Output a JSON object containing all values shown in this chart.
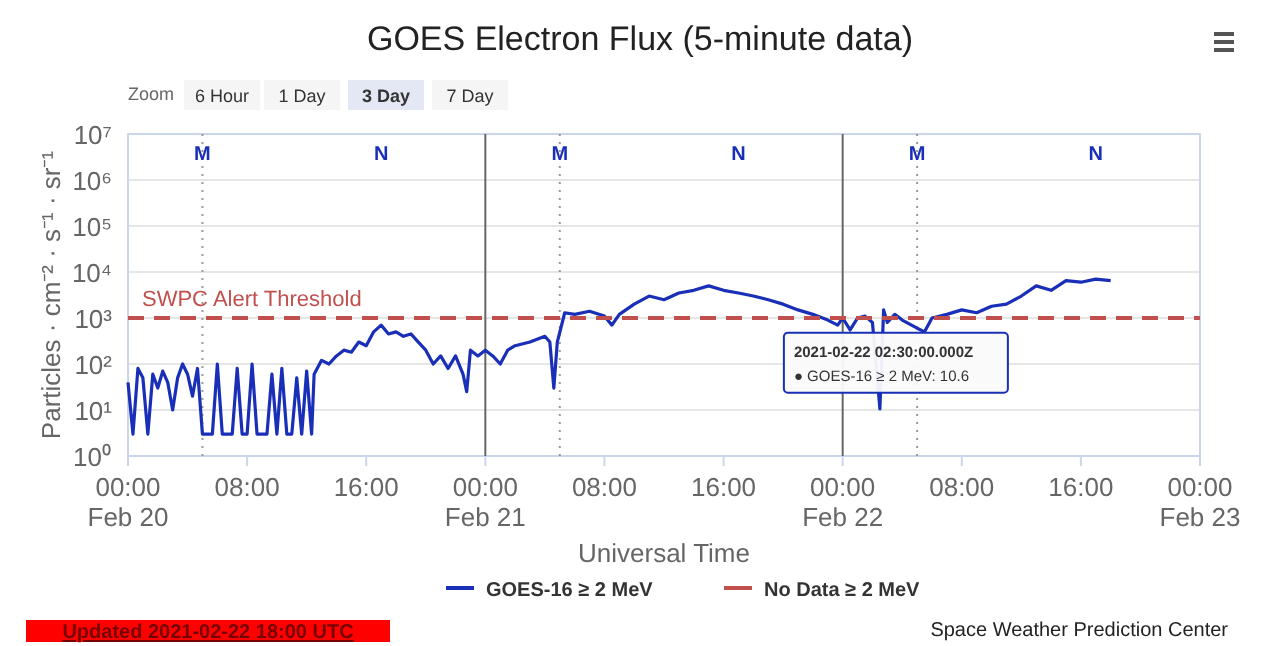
{
  "chart_data": {
    "type": "line",
    "title": "GOES Electron Flux (5-minute data)",
    "xlabel": "Universal Time",
    "ylabel": "Particles · cm⁻² · s⁻¹ · sr⁻¹",
    "log": "y",
    "grid": "y",
    "legend": "bottom",
    "line_style": "solid",
    "xlim": [
      "2021-02-20T00:00",
      "2021-02-23T00:00"
    ],
    "xticks": [
      {
        "value": "2021-02-20T00:00",
        "label": "00:00\nFeb 20"
      },
      {
        "value": "2021-02-20T08:00",
        "label": "08:00"
      },
      {
        "value": "2021-02-20T16:00",
        "label": "16:00"
      },
      {
        "value": "2021-02-21T00:00",
        "label": "00:00\nFeb 21"
      },
      {
        "value": "2021-02-21T08:00",
        "label": "08:00"
      },
      {
        "value": "2021-02-21T16:00",
        "label": "16:00"
      },
      {
        "value": "2021-02-22T00:00",
        "label": "00:00\nFeb 22"
      },
      {
        "value": "2021-02-22T08:00",
        "label": "08:00"
      },
      {
        "value": "2021-02-22T16:00",
        "label": "16:00"
      },
      {
        "value": "2021-02-23T00:00",
        "label": "00:00\nFeb 23"
      }
    ],
    "ylim": [
      1,
      10000000
    ],
    "yticks": [
      {
        "value": 1,
        "label": "10⁰"
      },
      {
        "value": 10,
        "label": "10¹"
      },
      {
        "value": 100,
        "label": "10²"
      },
      {
        "value": 1000,
        "label": "10³"
      },
      {
        "value": 10000,
        "label": "10⁴"
      },
      {
        "value": 100000,
        "label": "10⁵"
      },
      {
        "value": 1000000,
        "label": "10⁶"
      },
      {
        "value": 10000000,
        "label": "10⁷"
      }
    ],
    "series": [
      {
        "name": "GOES-16 ≥ 2 MeV",
        "color": "#1a2fb8",
        "x": [
          "2021-02-20T00:00",
          "2021-02-20T00:20",
          "2021-02-20T00:40",
          "2021-02-20T01:00",
          "2021-02-20T01:20",
          "2021-02-20T01:40",
          "2021-02-20T02:00",
          "2021-02-20T02:20",
          "2021-02-20T02:40",
          "2021-02-20T03:00",
          "2021-02-20T03:20",
          "2021-02-20T03:40",
          "2021-02-20T04:00",
          "2021-02-20T04:20",
          "2021-02-20T04:40",
          "2021-02-20T05:00",
          "2021-02-20T05:20",
          "2021-02-20T05:40",
          "2021-02-20T06:00",
          "2021-02-20T06:20",
          "2021-02-20T06:40",
          "2021-02-20T07:00",
          "2021-02-20T07:20",
          "2021-02-20T07:40",
          "2021-02-20T08:00",
          "2021-02-20T08:20",
          "2021-02-20T08:40",
          "2021-02-20T09:00",
          "2021-02-20T09:20",
          "2021-02-20T09:40",
          "2021-02-20T10:00",
          "2021-02-20T10:20",
          "2021-02-20T10:40",
          "2021-02-20T11:00",
          "2021-02-20T11:20",
          "2021-02-20T11:40",
          "2021-02-20T12:00",
          "2021-02-20T12:20",
          "2021-02-20T12:30",
          "2021-02-20T13:00",
          "2021-02-20T13:30",
          "2021-02-20T14:00",
          "2021-02-20T14:30",
          "2021-02-20T15:00",
          "2021-02-20T15:30",
          "2021-02-20T16:00",
          "2021-02-20T16:30",
          "2021-02-20T17:00",
          "2021-02-20T17:30",
          "2021-02-20T18:00",
          "2021-02-20T18:30",
          "2021-02-20T19:00",
          "2021-02-20T19:30",
          "2021-02-20T20:00",
          "2021-02-20T20:30",
          "2021-02-20T21:00",
          "2021-02-20T21:30",
          "2021-02-20T22:00",
          "2021-02-20T22:30",
          "2021-02-20T22:45",
          "2021-02-20T23:00",
          "2021-02-20T23:30",
          "2021-02-21T00:00",
          "2021-02-21T00:30",
          "2021-02-21T01:00",
          "2021-02-21T01:30",
          "2021-02-21T02:00",
          "2021-02-21T03:00",
          "2021-02-21T04:00",
          "2021-02-21T04:20",
          "2021-02-21T04:36",
          "2021-02-21T04:50",
          "2021-02-21T05:20",
          "2021-02-21T06:00",
          "2021-02-21T07:00",
          "2021-02-21T08:00",
          "2021-02-21T08:30",
          "2021-02-21T09:00",
          "2021-02-21T10:00",
          "2021-02-21T11:00",
          "2021-02-21T12:00",
          "2021-02-21T13:00",
          "2021-02-21T14:00",
          "2021-02-21T15:00",
          "2021-02-21T16:00",
          "2021-02-21T17:00",
          "2021-02-21T18:00",
          "2021-02-21T19:00",
          "2021-02-21T20:00",
          "2021-02-21T21:00",
          "2021-02-21T22:00",
          "2021-02-21T23:00",
          "2021-02-21T23:40",
          "2021-02-22T00:00",
          "2021-02-22T00:30",
          "2021-02-22T01:00",
          "2021-02-22T01:30",
          "2021-02-22T02:00",
          "2021-02-22T02:30",
          "2021-02-22T02:45",
          "2021-02-22T03:00",
          "2021-02-22T03:30",
          "2021-02-22T04:00",
          "2021-02-22T05:00",
          "2021-02-22T05:30",
          "2021-02-22T06:00",
          "2021-02-22T07:00",
          "2021-02-22T08:00",
          "2021-02-22T09:00",
          "2021-02-22T10:00",
          "2021-02-22T11:00",
          "2021-02-22T12:00",
          "2021-02-22T13:00",
          "2021-02-22T14:00",
          "2021-02-22T15:00",
          "2021-02-22T16:00",
          "2021-02-22T17:00",
          "2021-02-22T18:00"
        ],
        "values": [
          40,
          3,
          80,
          50,
          3,
          60,
          30,
          70,
          40,
          10,
          50,
          100,
          60,
          20,
          80,
          3,
          3,
          3,
          100,
          3,
          3,
          3,
          80,
          3,
          3,
          100,
          3,
          3,
          3,
          60,
          3,
          80,
          3,
          3,
          50,
          3,
          70,
          3,
          60,
          120,
          100,
          150,
          200,
          180,
          300,
          250,
          500,
          700,
          450,
          500,
          400,
          450,
          300,
          200,
          100,
          150,
          80,
          150,
          60,
          25,
          200,
          150,
          200,
          150,
          100,
          200,
          250,
          300,
          400,
          300,
          30,
          300,
          1300,
          1200,
          1400,
          1100,
          700,
          1200,
          2000,
          3000,
          2500,
          3500,
          4000,
          5000,
          4000,
          3500,
          3000,
          2500,
          2000,
          1500,
          1200,
          900,
          700,
          1000,
          550,
          1000,
          1100,
          800,
          10.6,
          1500,
          800,
          1200,
          900,
          600,
          500,
          1000,
          1200,
          1500,
          1300,
          1800,
          2000,
          3000,
          5000,
          4000,
          6500,
          6000,
          7000,
          6500
        ]
      },
      {
        "name": "No Data ≥ 2 MeV",
        "color": "#c0504d"
      }
    ],
    "ref_lines": [
      {
        "axis": "y",
        "value": 1000,
        "label": "SWPC Alert Threshold",
        "color": "#c0504d",
        "line_style": "dashed"
      },
      {
        "axis": "x",
        "value": "2021-02-21T00:00",
        "label": null,
        "color": "#666666",
        "line_style": "solid"
      },
      {
        "axis": "x",
        "value": "2021-02-22T00:00",
        "label": null,
        "color": "#666666",
        "line_style": "solid"
      },
      {
        "axis": "x",
        "value": "2021-02-20T05:00",
        "label": "M",
        "color": "#999999",
        "line_style": "dotted"
      },
      {
        "axis": "x",
        "value": "2021-02-21T05:00",
        "label": "M",
        "color": "#999999",
        "line_style": "dotted"
      },
      {
        "axis": "x",
        "value": "2021-02-22T05:00",
        "label": "M",
        "color": "#999999",
        "line_style": "dotted"
      }
    ],
    "annotations": [
      {
        "text": "2021-02-22 02:30:00.000Z\n● GOES-16 ≥ 2 MeV: 10.6",
        "x": "2021-02-22T02:30",
        "y": 10.6
      },
      "N",
      "N",
      "N",
      "Zoom",
      "6 Hour",
      "1 Day",
      "3 Day",
      "7 Day",
      "Updated 2021-02-22 18:00 UTC",
      "Space Weather Prediction Center"
    ]
  }
}
